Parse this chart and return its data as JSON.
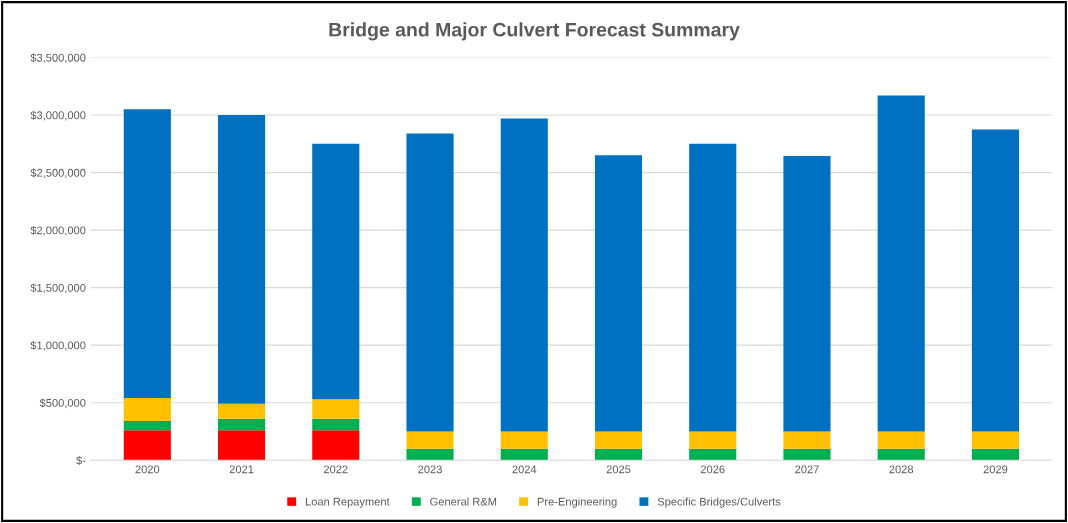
{
  "chart_data": {
    "type": "bar",
    "title": "Bridge and Major Culvert Forecast Summary",
    "stacked": true,
    "grid": "y",
    "legend": "bottom",
    "categories": [
      "2020",
      "2021",
      "2022",
      "2023",
      "2024",
      "2025",
      "2026",
      "2027",
      "2028",
      "2029"
    ],
    "series": [
      {
        "name": "Loan Repayment",
        "color": "#ff0000",
        "values": [
          260000,
          260000,
          260000,
          0,
          0,
          0,
          0,
          0,
          0,
          0
        ]
      },
      {
        "name": "General R&M",
        "color": "#00b050",
        "values": [
          80000,
          100000,
          100000,
          100000,
          100000,
          100000,
          100000,
          100000,
          100000,
          100000
        ]
      },
      {
        "name": "Pre-Engineering",
        "color": "#ffc000",
        "values": [
          200000,
          130000,
          170000,
          150000,
          150000,
          150000,
          150000,
          150000,
          150000,
          150000
        ]
      },
      {
        "name": "Specific Bridges/Culverts",
        "color": "#0070c0",
        "values": [
          2510000,
          2510000,
          2220000,
          2590000,
          2720000,
          2400000,
          2500000,
          2395000,
          2920000,
          2625000
        ]
      }
    ],
    "ylim": [
      0,
      3500000
    ],
    "yticks": [
      {
        "value": 0,
        "label": "$-"
      },
      {
        "value": 500000,
        "label": "$500,000"
      },
      {
        "value": 1000000,
        "label": "$1,000,000"
      },
      {
        "value": 1500000,
        "label": "$1,500,000"
      },
      {
        "value": 2000000,
        "label": "$2,000,000"
      },
      {
        "value": 2500000,
        "label": "$2,500,000"
      },
      {
        "value": 3000000,
        "label": "$3,000,000"
      },
      {
        "value": 3500000,
        "label": "$3,500,000"
      }
    ]
  }
}
